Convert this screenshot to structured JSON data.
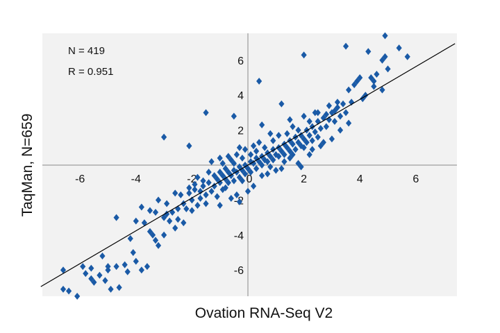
{
  "chart_data": {
    "type": "scatter",
    "title": "",
    "xlabel": "Ovation RNA-Seq V2",
    "ylabel": "TaqMan, N=659",
    "xlim": [
      -7.4,
      7.4
    ],
    "ylim": [
      -7.5,
      7.5
    ],
    "xticks": [
      "-6",
      "-4",
      "-2",
      "0",
      "2",
      "4",
      "6"
    ],
    "yticks": [
      "-6",
      "-4",
      "-2",
      "2",
      "4",
      "6"
    ],
    "grid": false,
    "annotations": {
      "n": "N = 419",
      "r": "R  = 0.951"
    },
    "fit_line": {
      "x": [
        -7.4,
        7.4
      ],
      "y": [
        -6.95,
        6.95
      ]
    },
    "colors": {
      "points": "#1a5aa6",
      "background": "#f2f2f2",
      "line": "#000000"
    },
    "points": [
      [
        -6.6,
        -6.0
      ],
      [
        -6.4,
        -7.2
      ],
      [
        -6.6,
        -7.1
      ],
      [
        -6.1,
        -7.5
      ],
      [
        -5.8,
        -6.2
      ],
      [
        -5.9,
        -5.8
      ],
      [
        -5.6,
        -5.9
      ],
      [
        -5.6,
        -6.5
      ],
      [
        -5.5,
        -6.7
      ],
      [
        -5.3,
        -6.3
      ],
      [
        -5.2,
        -5.2
      ],
      [
        -5.0,
        -5.8
      ],
      [
        -5.0,
        -6.0
      ],
      [
        -4.9,
        -7.1
      ],
      [
        -4.7,
        -5.8
      ],
      [
        -4.6,
        -7.0
      ],
      [
        -5.1,
        -6.6
      ],
      [
        -4.4,
        -5.7
      ],
      [
        -4.3,
        -6.1
      ],
      [
        -4.1,
        -5.0
      ],
      [
        -4.7,
        -3.0
      ],
      [
        -4.0,
        -5.5
      ],
      [
        -3.8,
        -6.0
      ],
      [
        -3.6,
        -5.8
      ],
      [
        -3.5,
        -3.8
      ],
      [
        -3.4,
        -4.0
      ],
      [
        -3.3,
        -4.3
      ],
      [
        -3.2,
        -4.6
      ],
      [
        -3.0,
        -4.0
      ],
      [
        -3.0,
        -3.0
      ],
      [
        -3.5,
        -2.6
      ],
      [
        -3.2,
        -2.0
      ],
      [
        -2.9,
        -2.2
      ],
      [
        -2.8,
        -3.2
      ],
      [
        -2.7,
        -2.7
      ],
      [
        -2.6,
        -3.6
      ],
      [
        -2.5,
        -2.5
      ],
      [
        -2.4,
        -1.7
      ],
      [
        -2.3,
        -2.2
      ],
      [
        -2.2,
        -2.5
      ],
      [
        -2.1,
        -1.6
      ],
      [
        -2.0,
        -2.0
      ],
      [
        -1.9,
        -1.4
      ],
      [
        -1.8,
        -2.3
      ],
      [
        -1.7,
        -1.5
      ],
      [
        -1.7,
        -1.9
      ],
      [
        -1.6,
        -1.2
      ],
      [
        -1.5,
        -1.7
      ],
      [
        -1.4,
        -1.0
      ],
      [
        -1.3,
        -1.5
      ],
      [
        -1.2,
        -1.2
      ],
      [
        -1.1,
        -0.8
      ],
      [
        -1.0,
        -1.0
      ],
      [
        -0.9,
        -0.6
      ],
      [
        -0.9,
        -1.4
      ],
      [
        -0.8,
        -0.8
      ],
      [
        -0.7,
        -0.4
      ],
      [
        -0.7,
        -1.0
      ],
      [
        -0.6,
        -0.6
      ],
      [
        -0.5,
        -0.3
      ],
      [
        -0.5,
        -0.9
      ],
      [
        -0.4,
        -0.4
      ],
      [
        -0.3,
        -0.1
      ],
      [
        -0.3,
        -0.7
      ],
      [
        -0.2,
        -0.3
      ],
      [
        -0.1,
        0.0
      ],
      [
        -0.1,
        -0.5
      ],
      [
        0.0,
        -0.2
      ],
      [
        0.1,
        0.2
      ],
      [
        0.1,
        -0.4
      ],
      [
        0.2,
        0.1
      ],
      [
        0.3,
        0.4
      ],
      [
        0.3,
        -0.2
      ],
      [
        0.4,
        0.2
      ],
      [
        0.5,
        0.5
      ],
      [
        0.5,
        0.0
      ],
      [
        0.6,
        0.3
      ],
      [
        0.7,
        0.7
      ],
      [
        0.7,
        0.2
      ],
      [
        0.8,
        0.5
      ],
      [
        0.9,
        0.9
      ],
      [
        0.9,
        0.3
      ],
      [
        1.0,
        0.6
      ],
      [
        1.1,
        1.0
      ],
      [
        1.1,
        0.5
      ],
      [
        1.2,
        0.8
      ],
      [
        1.3,
        1.2
      ],
      [
        1.3,
        0.6
      ],
      [
        1.4,
        1.0
      ],
      [
        1.5,
        1.4
      ],
      [
        1.5,
        0.8
      ],
      [
        1.6,
        1.2
      ],
      [
        1.7,
        1.6
      ],
      [
        1.7,
        0.9
      ],
      [
        1.8,
        1.3
      ],
      [
        1.9,
        1.7
      ],
      [
        1.9,
        1.1
      ],
      [
        2.0,
        1.5
      ],
      [
        2.1,
        2.0
      ],
      [
        2.1,
        1.3
      ],
      [
        2.2,
        1.7
      ],
      [
        2.3,
        2.2
      ],
      [
        2.3,
        1.4
      ],
      [
        2.4,
        1.9
      ],
      [
        2.5,
        2.5
      ],
      [
        2.5,
        1.6
      ],
      [
        2.6,
        2.1
      ],
      [
        2.7,
        2.7
      ],
      [
        2.8,
        2.2
      ],
      [
        2.9,
        2.6
      ],
      [
        3.0,
        3.0
      ],
      [
        3.1,
        2.5
      ],
      [
        3.2,
        3.3
      ],
      [
        3.3,
        2.8
      ],
      [
        3.4,
        3.5
      ],
      [
        3.5,
        3.0
      ],
      [
        3.6,
        4.3
      ],
      [
        3.7,
        3.6
      ],
      [
        3.8,
        4.6
      ],
      [
        3.9,
        4.8
      ],
      [
        4.0,
        5.0
      ],
      [
        4.2,
        4.0
      ],
      [
        4.4,
        5.0
      ],
      [
        4.5,
        4.5
      ],
      [
        4.6,
        5.2
      ],
      [
        4.8,
        4.3
      ],
      [
        4.9,
        6.2
      ],
      [
        4.8,
        6.0
      ],
      [
        4.9,
        7.4
      ],
      [
        5.0,
        5.5
      ],
      [
        5.4,
        6.7
      ],
      [
        5.7,
        6.2
      ],
      [
        4.3,
        6.5
      ],
      [
        3.5,
        6.8
      ],
      [
        2.0,
        6.3
      ],
      [
        0.4,
        4.8
      ],
      [
        -0.5,
        2.8
      ],
      [
        -1.5,
        3.0
      ],
      [
        -3.0,
        1.6
      ],
      [
        -2.1,
        1.1
      ],
      [
        0.5,
        2.3
      ],
      [
        1.2,
        3.5
      ],
      [
        1.5,
        2.6
      ],
      [
        2.0,
        2.8
      ],
      [
        2.4,
        3.0
      ],
      [
        2.8,
        2.9
      ],
      [
        3.2,
        3.6
      ],
      [
        0.8,
        1.8
      ],
      [
        1.2,
        -0.2
      ],
      [
        0.7,
        -0.5
      ],
      [
        1.0,
        -0.3
      ],
      [
        1.5,
        0.4
      ],
      [
        1.8,
        0.1
      ],
      [
        1.9,
        -0.1
      ],
      [
        2.2,
        0.6
      ],
      [
        2.0,
        1.0
      ],
      [
        2.6,
        1.1
      ],
      [
        3.0,
        1.5
      ],
      [
        0.2,
        -1.2
      ],
      [
        0.0,
        -1.5
      ],
      [
        -0.4,
        -1.7
      ],
      [
        -0.8,
        -1.3
      ],
      [
        -0.2,
        -0.9
      ],
      [
        -0.6,
        0.3
      ],
      [
        -0.9,
        0.1
      ],
      [
        -0.4,
        0.6
      ],
      [
        -0.1,
        0.9
      ],
      [
        0.2,
        1.1
      ],
      [
        0.4,
        1.3
      ],
      [
        -0.3,
        1.0
      ],
      [
        0.1,
        0.6
      ],
      [
        0.6,
        1.0
      ],
      [
        0.9,
        1.4
      ],
      [
        1.4,
        1.8
      ],
      [
        1.6,
        2.2
      ],
      [
        1.1,
        1.7
      ],
      [
        0.3,
        0.8
      ],
      [
        -0.2,
        0.4
      ],
      [
        -0.5,
        0.1
      ],
      [
        -0.8,
        -0.2
      ],
      [
        -1.0,
        -0.4
      ],
      [
        -1.2,
        -0.6
      ],
      [
        -1.4,
        -0.4
      ],
      [
        -1.6,
        -0.9
      ],
      [
        -1.9,
        -1.1
      ],
      [
        -2.1,
        -1.3
      ],
      [
        -1.8,
        -0.7
      ],
      [
        -1.3,
        0.2
      ],
      [
        -1.0,
        0.4
      ],
      [
        -0.7,
        0.5
      ],
      [
        -2.6,
        -1.6
      ],
      [
        -2.9,
        -2.8
      ],
      [
        -3.3,
        -2.7
      ],
      [
        -3.7,
        -3.3
      ],
      [
        -4.2,
        -4.2
      ],
      [
        -4.0,
        -3.2
      ],
      [
        -3.8,
        -2.4
      ],
      [
        -2.3,
        -3.3
      ],
      [
        -2.0,
        -2.6
      ],
      [
        -2.5,
        -3.1
      ],
      [
        -1.5,
        -2.2
      ],
      [
        -1.1,
        -1.8
      ],
      [
        -1.0,
        -2.3
      ],
      [
        -0.6,
        -1.9
      ],
      [
        -0.3,
        -2.1
      ],
      [
        0.5,
        -0.6
      ],
      [
        0.8,
        -0.1
      ],
      [
        1.3,
        0.2
      ],
      [
        1.6,
        0.6
      ],
      [
        2.3,
        0.9
      ],
      [
        2.7,
        1.3
      ],
      [
        3.3,
        2.0
      ],
      [
        3.6,
        2.4
      ],
      [
        4.1,
        3.8
      ],
      [
        4.5,
        4.8
      ],
      [
        3.1,
        3.1
      ],
      [
        2.9,
        3.4
      ],
      [
        2.5,
        3.0
      ],
      [
        2.2,
        2.5
      ],
      [
        1.8,
        2.0
      ]
    ]
  }
}
